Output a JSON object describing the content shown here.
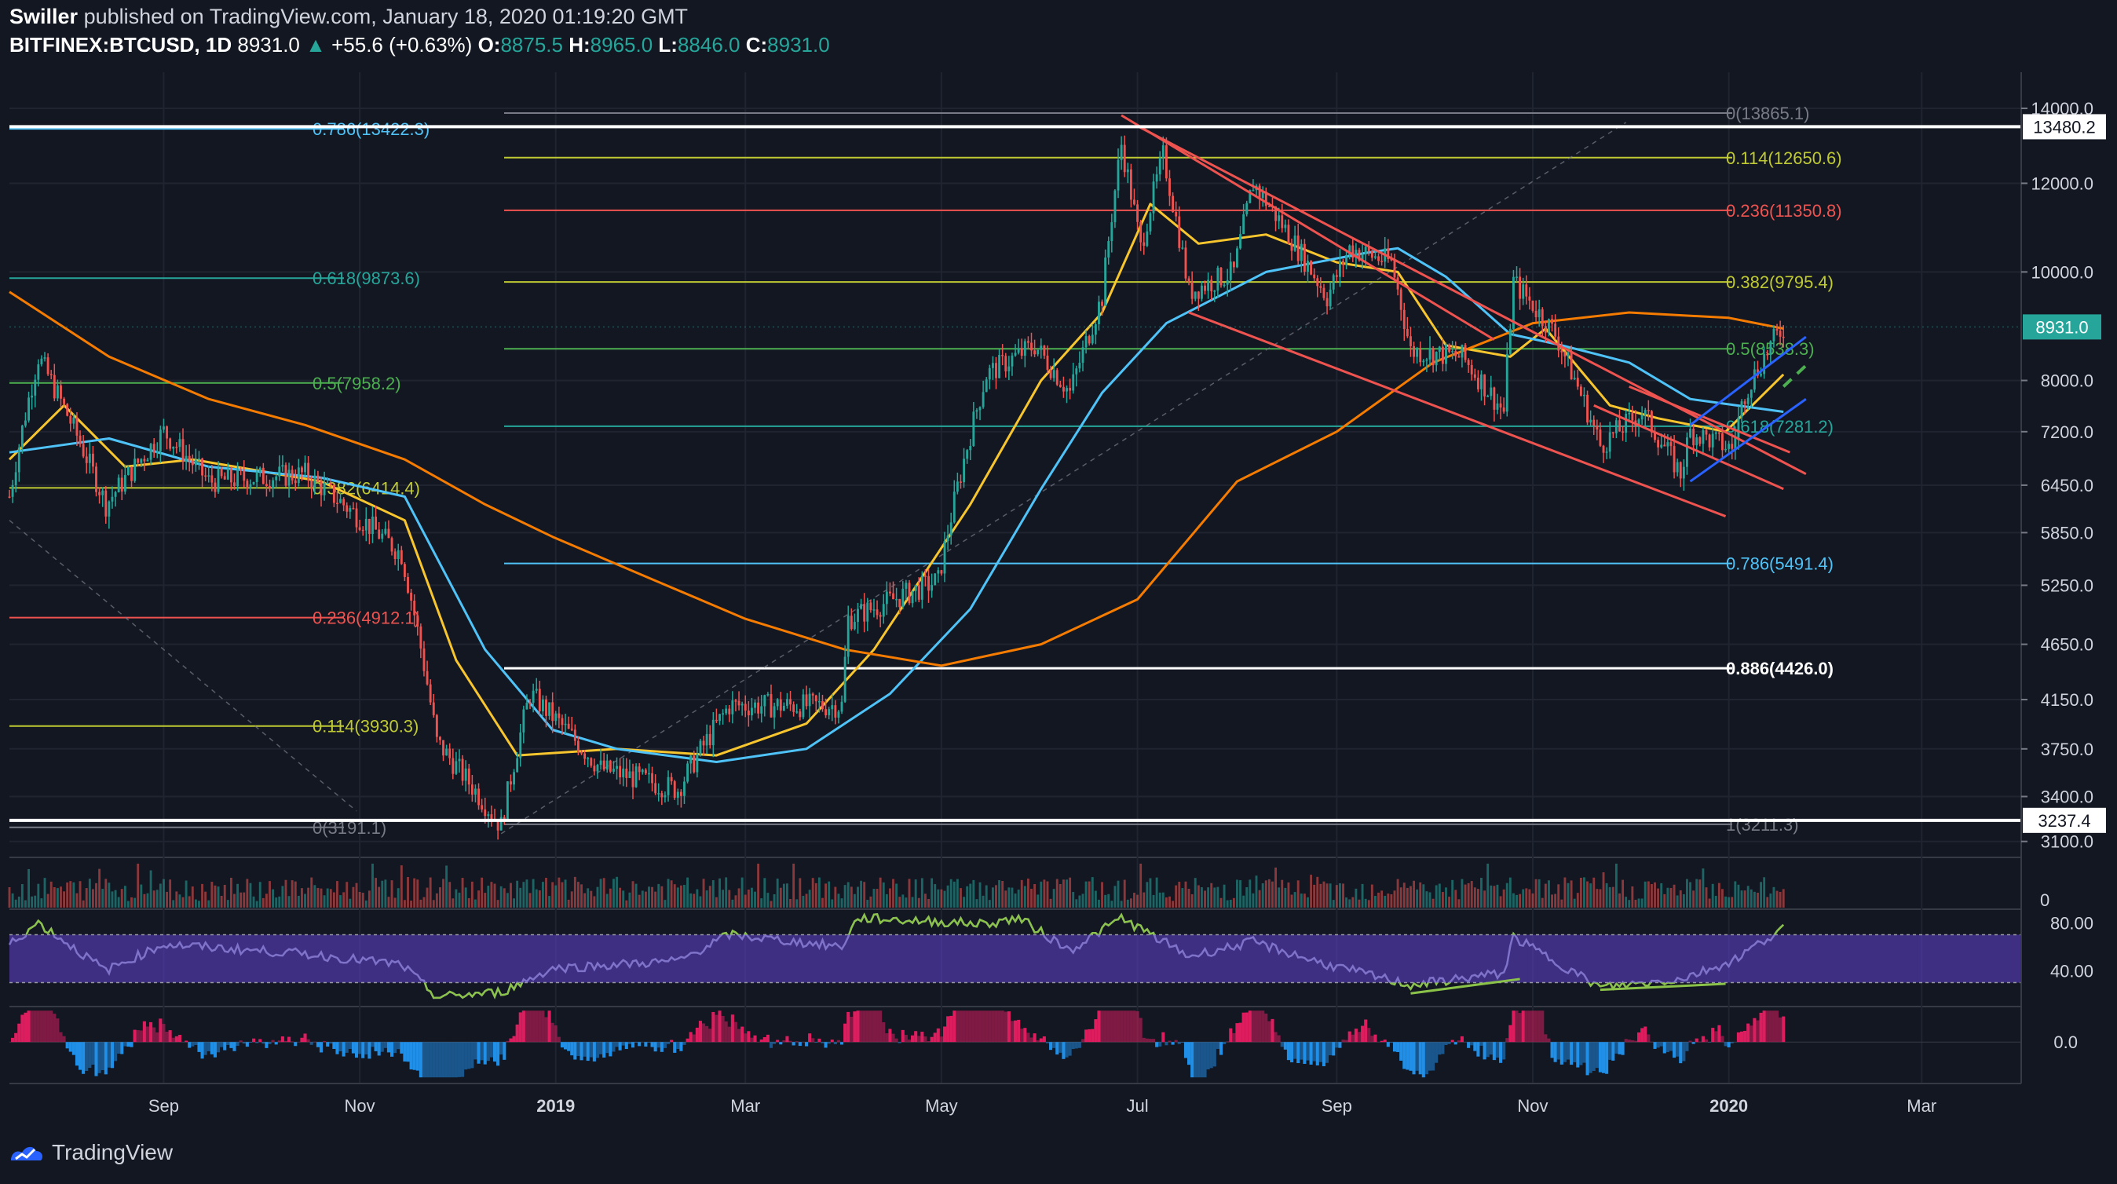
{
  "header": {
    "author": "Swiller",
    "published_text": "published on TradingView.com, January 18, 2020 01:19:20 GMT",
    "symbol": "BITFINEX:BTCUSD, 1D",
    "last": "8931.0",
    "change_arrow": "▲",
    "change": "+55.6 (+0.63%)",
    "o_label": "O:",
    "o_value": "8875.5",
    "h_label": "H:",
    "h_value": "8965.0",
    "l_label": "L:",
    "l_value": "8846.0",
    "c_label": "C:",
    "c_value": "8931.0"
  },
  "brand": {
    "name": "TradingView",
    "icon": "tradingview-logo-icon"
  },
  "colors": {
    "background": "#131722",
    "up": "#26a69a",
    "down": "#ef5350",
    "ema_short": "#f7c52e",
    "ema_mid": "#4fc3f7",
    "ema_long": "#f57c00",
    "rsi_band": "#5b3fc4",
    "trend_red": "#ef5350",
    "channel_blue": "#2962ff",
    "dash_green": "#4caf50"
  },
  "chart_data": {
    "type": "candlestick",
    "x_axis": {
      "ticks": [
        "Sep",
        "Nov",
        "2019",
        "Mar",
        "May",
        "Jul",
        "Sep",
        "Nov",
        "2020",
        "Mar"
      ],
      "tick_dates": [
        "2018-09-01",
        "2018-11-01",
        "2019-01-01",
        "2019-03-01",
        "2019-05-01",
        "2019-07-01",
        "2019-09-01",
        "2019-11-01",
        "2020-01-01",
        "2020-03-01"
      ],
      "range": [
        "2018-07-15",
        "2020-03-31"
      ]
    },
    "y_axis": {
      "scale": "log",
      "range": [
        3000,
        14600
      ],
      "ticks": [
        14000.0,
        12000.0,
        10000.0,
        8000.0,
        7200.0,
        6450.0,
        5850.0,
        5250.0,
        4650.0,
        4150.0,
        3750.0,
        3400.0,
        3100.0
      ],
      "tick_labels": [
        "14000.0",
        "12000.0",
        "10000.0",
        "8000.0",
        "7200.0",
        "6450.0",
        "5850.0",
        "5250.0",
        "4650.0",
        "4150.0",
        "3750.0",
        "3400.0",
        "3100.0"
      ]
    },
    "price_anchor_points": [
      [
        "2018-07-15",
        6300
      ],
      [
        "2018-07-24",
        8400
      ],
      [
        "2018-08-14",
        6200
      ],
      [
        "2018-09-01",
        7200
      ],
      [
        "2018-09-15",
        6500
      ],
      [
        "2018-10-15",
        6600
      ],
      [
        "2018-11-14",
        5600
      ],
      [
        "2018-11-25",
        3800
      ],
      [
        "2018-12-15",
        3200
      ],
      [
        "2018-12-24",
        4200
      ],
      [
        "2019-01-15",
        3600
      ],
      [
        "2019-02-08",
        3450
      ],
      [
        "2019-02-24",
        4100
      ],
      [
        "2019-03-31",
        4100
      ],
      [
        "2019-04-02",
        4900
      ],
      [
        "2019-04-30",
        5300
      ],
      [
        "2019-05-15",
        8100
      ],
      [
        "2019-05-30",
        8600
      ],
      [
        "2019-06-10",
        7800
      ],
      [
        "2019-06-20",
        9500
      ],
      [
        "2019-06-26",
        13000
      ],
      [
        "2019-07-02",
        10500
      ],
      [
        "2019-07-09",
        12700
      ],
      [
        "2019-07-17",
        9600
      ],
      [
        "2019-07-31",
        10000
      ],
      [
        "2019-08-06",
        12000
      ],
      [
        "2019-08-29",
        9500
      ],
      [
        "2019-09-05",
        10500
      ],
      [
        "2019-09-18",
        10200
      ],
      [
        "2019-09-24",
        8500
      ],
      [
        "2019-10-10",
        8400
      ],
      [
        "2019-10-23",
        7500
      ],
      [
        "2019-10-26",
        9800
      ],
      [
        "2019-11-08",
        8800
      ],
      [
        "2019-11-22",
        7000
      ],
      [
        "2019-12-05",
        7500
      ],
      [
        "2019-12-17",
        6600
      ],
      [
        "2019-12-20",
        7200
      ],
      [
        "2020-01-02",
        6950
      ],
      [
        "2020-01-06",
        7800
      ],
      [
        "2020-01-14",
        8600
      ],
      [
        "2020-01-18",
        8931
      ]
    ],
    "ema_short_points": [
      [
        "2018-07-15",
        6800
      ],
      [
        "2018-08-01",
        7600
      ],
      [
        "2018-08-20",
        6700
      ],
      [
        "2018-09-10",
        6800
      ],
      [
        "2018-10-20",
        6500
      ],
      [
        "2018-11-15",
        6000
      ],
      [
        "2018-12-01",
        4500
      ],
      [
        "2018-12-20",
        3700
      ],
      [
        "2019-01-20",
        3750
      ],
      [
        "2019-02-20",
        3700
      ],
      [
        "2019-03-20",
        3950
      ],
      [
        "2019-04-10",
        4600
      ],
      [
        "2019-05-10",
        6200
      ],
      [
        "2019-06-01",
        8000
      ],
      [
        "2019-06-20",
        9200
      ],
      [
        "2019-07-05",
        11500
      ],
      [
        "2019-07-20",
        10600
      ],
      [
        "2019-08-10",
        10800
      ],
      [
        "2019-09-01",
        10200
      ],
      [
        "2019-09-20",
        10000
      ],
      [
        "2019-10-05",
        8600
      ],
      [
        "2019-10-25",
        8400
      ],
      [
        "2019-11-05",
        8900
      ],
      [
        "2019-11-25",
        7600
      ],
      [
        "2019-12-10",
        7400
      ],
      [
        "2019-12-31",
        7200
      ],
      [
        "2020-01-18",
        8100
      ]
    ],
    "ema_mid_points": [
      [
        "2018-07-15",
        6900
      ],
      [
        "2018-08-15",
        7100
      ],
      [
        "2018-09-15",
        6700
      ],
      [
        "2018-10-20",
        6550
      ],
      [
        "2018-11-15",
        6300
      ],
      [
        "2018-12-10",
        4600
      ],
      [
        "2018-12-31",
        3900
      ],
      [
        "2019-01-20",
        3750
      ],
      [
        "2019-02-20",
        3650
      ],
      [
        "2019-03-20",
        3750
      ],
      [
        "2019-04-15",
        4200
      ],
      [
        "2019-05-10",
        5000
      ],
      [
        "2019-06-01",
        6400
      ],
      [
        "2019-06-20",
        7800
      ],
      [
        "2019-07-10",
        9000
      ],
      [
        "2019-08-10",
        10000
      ],
      [
        "2019-09-10",
        10400
      ],
      [
        "2019-09-20",
        10500
      ],
      [
        "2019-10-05",
        9900
      ],
      [
        "2019-10-25",
        8800
      ],
      [
        "2019-11-10",
        8600
      ],
      [
        "2019-12-01",
        8300
      ],
      [
        "2019-12-20",
        7700
      ],
      [
        "2020-01-18",
        7500
      ]
    ],
    "ema_long_points": [
      [
        "2018-07-15",
        9600
      ],
      [
        "2018-08-15",
        8400
      ],
      [
        "2018-09-15",
        7700
      ],
      [
        "2018-10-15",
        7300
      ],
      [
        "2018-11-15",
        6800
      ],
      [
        "2018-12-10",
        6200
      ],
      [
        "2018-12-31",
        5800
      ],
      [
        "2019-02-01",
        5300
      ],
      [
        "2019-03-01",
        4900
      ],
      [
        "2019-04-01",
        4600
      ],
      [
        "2019-05-01",
        4450
      ],
      [
        "2019-06-01",
        4650
      ],
      [
        "2019-07-01",
        5100
      ],
      [
        "2019-08-01",
        6500
      ],
      [
        "2019-09-01",
        7200
      ],
      [
        "2019-10-01",
        8300
      ],
      [
        "2019-11-01",
        9000
      ],
      [
        "2019-12-01",
        9200
      ],
      [
        "2020-01-01",
        9100
      ],
      [
        "2020-01-18",
        8900
      ]
    ],
    "fib_left": [
      {
        "label": "0.786(13422.3)",
        "price": 13422.3,
        "color": "#4fc3f7"
      },
      {
        "label": "0.618(9873.6)",
        "price": 9873.6,
        "color": "#26a69a"
      },
      {
        "label": "0.5(7958.2)",
        "price": 7958.2,
        "color": "#4caf50"
      },
      {
        "label": "0.382(6414.4)",
        "price": 6414.4,
        "color": "#c0ca33"
      },
      {
        "label": "0.236(4912.1)",
        "price": 4912.1,
        "color": "#ef5350"
      },
      {
        "label": "0.114(3930.3)",
        "price": 3930.3,
        "color": "#c0ca33"
      },
      {
        "label": "0(3191.1)",
        "price": 3191.1,
        "color": "#787b86"
      }
    ],
    "fib_right": [
      {
        "label": "0(13865.1)",
        "price": 13865.1,
        "color": "#787b86"
      },
      {
        "label": "0.114(12650.6)",
        "price": 12650.6,
        "color": "#c0ca33"
      },
      {
        "label": "0.236(11350.8)",
        "price": 11350.8,
        "color": "#ef5350"
      },
      {
        "label": "0.382(9795.4)",
        "price": 9795.4,
        "color": "#c0ca33"
      },
      {
        "label": "0.5(8538.3)",
        "price": 8538.3,
        "color": "#4caf50"
      },
      {
        "label": "0.618(7281.2)",
        "price": 7281.2,
        "color": "#26a69a"
      },
      {
        "label": "0.786(5491.4)",
        "price": 5491.4,
        "color": "#4fc3f7"
      },
      {
        "label": "0.886(4426.0)",
        "price": 4426.0,
        "color": "#ffffff"
      },
      {
        "label": "1(3211.3)",
        "price": 3211.3,
        "color": "#787b86"
      }
    ],
    "horizontal_lines": [
      {
        "label": "13480.2",
        "price": 13480.2
      },
      {
        "label": "3237.4",
        "price": 3237.4
      }
    ],
    "last_price_label": "8931.0",
    "trendlines": [
      {
        "color": "#ef5350",
        "from": [
          "2019-06-26",
          13800
        ],
        "to": [
          "2019-10-20",
          8700
        ]
      },
      {
        "color": "#ef5350",
        "from": [
          "2019-07-01",
          13500
        ],
        "to": [
          "2020-01-25",
          6600
        ]
      },
      {
        "color": "#ef5350",
        "from": [
          "2019-07-17",
          9200
        ],
        "to": [
          "2019-12-31",
          6050
        ]
      },
      {
        "color": "#ef5350",
        "from": [
          "2019-11-20",
          7600
        ],
        "to": [
          "2020-01-18",
          6400
        ]
      },
      {
        "color": "#ef5350",
        "from": [
          "2019-12-01",
          7900
        ],
        "to": [
          "2020-01-20",
          6900
        ]
      },
      {
        "color": "#2962ff",
        "from": [
          "2019-12-20",
          7300
        ],
        "to": [
          "2020-01-25",
          8750
        ]
      },
      {
        "color": "#2962ff",
        "from": [
          "2019-12-20",
          6500
        ],
        "to": [
          "2020-01-25",
          7700
        ]
      }
    ],
    "dashed_lines": [
      {
        "color": "#787b86",
        "from": [
          "2018-12-15",
          3150
        ],
        "to": [
          "2019-11-30",
          13600
        ]
      },
      {
        "color": "#787b86",
        "from": [
          "2018-07-15",
          6000
        ],
        "to": [
          "2018-10-31",
          3300
        ]
      },
      {
        "color": "#4caf50",
        "from": [
          "2020-01-18",
          7900
        ],
        "to": [
          "2020-01-25",
          8250
        ]
      }
    ],
    "volume_pane": {
      "tick_labels": [
        "0"
      ]
    },
    "rsi_pane": {
      "tick_labels": [
        "80.00",
        "40.00"
      ],
      "range": [
        10,
        90
      ],
      "band": [
        70,
        30
      ],
      "points": [
        [
          "2018-07-15",
          62
        ],
        [
          "2018-07-24",
          80
        ],
        [
          "2018-08-14",
          40
        ],
        [
          "2018-09-01",
          62
        ],
        [
          "2018-10-15",
          54
        ],
        [
          "2018-11-14",
          45
        ],
        [
          "2018-11-25",
          18
        ],
        [
          "2018-12-15",
          22
        ],
        [
          "2018-12-31",
          42
        ],
        [
          "2019-02-08",
          48
        ],
        [
          "2019-02-24",
          70
        ],
        [
          "2019-03-31",
          60
        ],
        [
          "2019-04-05",
          84
        ],
        [
          "2019-05-15",
          79
        ],
        [
          "2019-05-25",
          84
        ],
        [
          "2019-06-10",
          57
        ],
        [
          "2019-06-26",
          84
        ],
        [
          "2019-07-17",
          52
        ],
        [
          "2019-08-06",
          64
        ],
        [
          "2019-08-29",
          45
        ],
        [
          "2019-09-24",
          28
        ],
        [
          "2019-10-23",
          38
        ],
        [
          "2019-10-26",
          68
        ],
        [
          "2019-11-22",
          26
        ],
        [
          "2019-12-17",
          33
        ],
        [
          "2020-01-02",
          48
        ],
        [
          "2020-01-18",
          76
        ]
      ],
      "divergence_lines": [
        {
          "from": [
            "2019-09-24",
            21
          ],
          "to": [
            "2019-10-28",
            33
          ]
        },
        {
          "from": [
            "2019-11-22",
            24
          ],
          "to": [
            "2019-12-31",
            29
          ]
        }
      ]
    },
    "macd_pane": {
      "tick_labels": [
        "0.0"
      ]
    },
    "legend": "none",
    "grid": true
  }
}
